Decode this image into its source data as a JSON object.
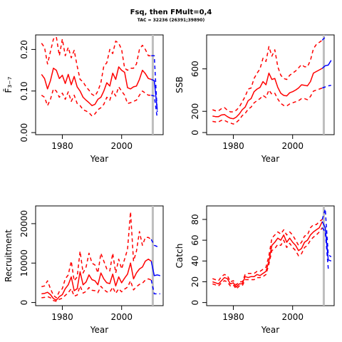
{
  "title": "Fsq, then FMult=0,4",
  "subtitle": "TAC = 32236 (26391;39890)",
  "colors": {
    "historical": "#ff0000",
    "projection": "#0000ff",
    "marker": "#bebebe",
    "axis": "#000000"
  },
  "chart_data": [
    {
      "type": "line",
      "id": "F",
      "xlabel": "Year",
      "ylabel": "F̄₃₋₇",
      "xlim": [
        1971,
        2014
      ],
      "ylim": [
        -0.005,
        0.235
      ],
      "xticks": [
        1980,
        2000
      ],
      "yticks": [
        0.0,
        0.1,
        0.2
      ],
      "ytick_labels": [
        "0.00",
        "0.10",
        "0.20"
      ],
      "marker_year": 2010.5,
      "historical": {
        "x": [
          1973,
          1974,
          1975,
          1976,
          1977,
          1978,
          1979,
          1980,
          1981,
          1982,
          1983,
          1984,
          1985,
          1986,
          1987,
          1988,
          1989,
          1990,
          1991,
          1992,
          1993,
          1994,
          1995,
          1996,
          1997,
          1998,
          1999,
          2000,
          2001,
          2002,
          2003,
          2004,
          2005,
          2006,
          2007,
          2008,
          2009,
          2010
        ],
        "mid": [
          0.14,
          0.13,
          0.105,
          0.125,
          0.155,
          0.15,
          0.13,
          0.138,
          0.118,
          0.14,
          0.115,
          0.135,
          0.11,
          0.1,
          0.085,
          0.078,
          0.072,
          0.065,
          0.068,
          0.08,
          0.085,
          0.1,
          0.12,
          0.112,
          0.143,
          0.128,
          0.158,
          0.15,
          0.145,
          0.108,
          0.105,
          0.11,
          0.112,
          0.128,
          0.15,
          0.142,
          0.13,
          0.128
        ],
        "upper": [
          0.215,
          0.205,
          0.165,
          0.195,
          0.225,
          0.23,
          0.185,
          0.225,
          0.185,
          0.205,
          0.18,
          0.198,
          0.16,
          0.128,
          0.122,
          0.11,
          0.102,
          0.092,
          0.088,
          0.1,
          0.12,
          0.16,
          0.168,
          0.2,
          0.19,
          0.22,
          0.215,
          0.2,
          0.155,
          0.15,
          0.155,
          0.155,
          0.165,
          0.2,
          0.21,
          0.2,
          0.185,
          0.185
        ],
        "lower": [
          0.09,
          0.085,
          0.065,
          0.08,
          0.105,
          0.1,
          0.085,
          0.095,
          0.08,
          0.098,
          0.075,
          0.09,
          0.07,
          0.065,
          0.055,
          0.052,
          0.048,
          0.04,
          0.045,
          0.055,
          0.06,
          0.068,
          0.085,
          0.078,
          0.1,
          0.088,
          0.11,
          0.1,
          0.09,
          0.07,
          0.072,
          0.075,
          0.078,
          0.09,
          0.1,
          0.095,
          0.09,
          0.09
        ]
      },
      "projection": {
        "x": [
          2010,
          2011,
          2012
        ],
        "mid": [
          0.128,
          0.125,
          0.055
        ],
        "upper": [
          0.185,
          0.185,
          0.05
        ],
        "lower": [
          0.09,
          0.088,
          0.035
        ]
      }
    },
    {
      "type": "line",
      "id": "SSB",
      "xlabel": "Year",
      "ylabel": "SSB",
      "xlim": [
        1971,
        2014
      ],
      "ylim": [
        -20,
        920
      ],
      "xticks": [
        1980,
        2000
      ],
      "yticks": [
        0,
        200,
        600
      ],
      "ytick_labels": [
        "0",
        "200",
        "600"
      ],
      "marker_year": 2010.5,
      "historical": {
        "x": [
          1973,
          1974,
          1975,
          1976,
          1977,
          1978,
          1979,
          1980,
          1981,
          1982,
          1983,
          1984,
          1985,
          1986,
          1987,
          1988,
          1989,
          1990,
          1991,
          1992,
          1993,
          1994,
          1995,
          1996,
          1997,
          1998,
          1999,
          2000,
          2001,
          2002,
          2003,
          2004,
          2005,
          2006,
          2007,
          2008,
          2009,
          2010
        ],
        "mid": [
          155,
          150,
          150,
          165,
          170,
          150,
          135,
          130,
          145,
          175,
          215,
          240,
          300,
          320,
          385,
          410,
          425,
          480,
          450,
          560,
          500,
          510,
          425,
          370,
          350,
          345,
          375,
          385,
          400,
          420,
          450,
          445,
          440,
          480,
          560,
          575,
          590,
          605
        ],
        "upper": [
          215,
          205,
          205,
          225,
          235,
          210,
          195,
          195,
          210,
          240,
          290,
          340,
          410,
          420,
          510,
          560,
          600,
          700,
          670,
          810,
          720,
          780,
          620,
          540,
          510,
          500,
          540,
          560,
          580,
          610,
          640,
          620,
          620,
          680,
          790,
          830,
          850,
          870
        ],
        "lower": [
          105,
          100,
          100,
          115,
          115,
          100,
          90,
          80,
          95,
          120,
          160,
          180,
          220,
          240,
          280,
          300,
          320,
          350,
          330,
          400,
          360,
          370,
          315,
          275,
          255,
          250,
          270,
          280,
          290,
          300,
          320,
          320,
          310,
          340,
          390,
          400,
          410,
          420
        ]
      },
      "projection": {
        "x": [
          2010,
          2011,
          2012,
          2013
        ],
        "mid": [
          605,
          630,
          635,
          680
        ],
        "upper": [
          870,
          900,
          960,
          980
        ],
        "lower": [
          420,
          430,
          440,
          445
        ]
      }
    },
    {
      "type": "line",
      "id": "Recruitment",
      "xlabel": "Year",
      "ylabel": "Recruitment",
      "xlim": [
        1971,
        2014
      ],
      "ylim": [
        -800,
        24500
      ],
      "xticks": [
        1980,
        2000
      ],
      "yticks": [
        0,
        10000,
        20000
      ],
      "ytick_labels": [
        "0",
        "10000",
        "20000"
      ],
      "marker_year": 2010.5,
      "historical": {
        "x": [
          1973,
          1974,
          1975,
          1976,
          1977,
          1978,
          1979,
          1980,
          1981,
          1982,
          1983,
          1984,
          1985,
          1986,
          1987,
          1988,
          1989,
          1990,
          1991,
          1992,
          1993,
          1994,
          1995,
          1996,
          1997,
          1998,
          1999,
          2000,
          2001,
          2002,
          2003,
          2004,
          2005,
          2006,
          2007,
          2008,
          2009,
          2010
        ],
        "mid": [
          2200,
          2300,
          2600,
          2000,
          1000,
          600,
          1500,
          2000,
          3500,
          4500,
          6500,
          3000,
          3500,
          7800,
          4500,
          5200,
          7000,
          5800,
          5500,
          4500,
          7500,
          6000,
          5000,
          4800,
          7200,
          4200,
          6500,
          5000,
          6200,
          7200,
          10000,
          6000,
          7500,
          8500,
          9000,
          10500,
          11000,
          10500
        ],
        "upper": [
          4000,
          4200,
          5500,
          3500,
          1800,
          1200,
          2800,
          3500,
          6000,
          7000,
          10500,
          5500,
          6500,
          13000,
          7500,
          9000,
          12500,
          10000,
          9500,
          7500,
          12500,
          10500,
          8500,
          8000,
          12500,
          7500,
          11000,
          8500,
          11000,
          13500,
          23000,
          10500,
          13000,
          18000,
          14500,
          16500,
          16500,
          16000
        ],
        "lower": [
          1200,
          1300,
          1500,
          1200,
          500,
          300,
          800,
          1100,
          1800,
          2500,
          3500,
          1600,
          1900,
          4200,
          2400,
          2800,
          3800,
          3100,
          3000,
          2500,
          4100,
          3300,
          2700,
          2600,
          3900,
          2300,
          3500,
          2700,
          3400,
          3900,
          5500,
          3200,
          4000,
          4600,
          4900,
          5700,
          6000,
          5700
        ]
      },
      "projection": {
        "x": [
          2010,
          2011,
          2012,
          2013
        ],
        "mid": [
          10500,
          6800,
          7000,
          6800
        ],
        "upper": [
          16000,
          14500,
          14200,
          14200
        ],
        "lower": [
          5700,
          2200,
          2200,
          2200
        ]
      }
    },
    {
      "type": "line",
      "id": "Catch",
      "xlabel": "Year",
      "ylabel": "Catch",
      "xlim": [
        1971,
        2014
      ],
      "ylim": [
        -3,
        93
      ],
      "xticks": [
        1980,
        2000
      ],
      "yticks": [
        0,
        20,
        40,
        60,
        80
      ],
      "ytick_labels": [
        "0",
        "20",
        "40",
        "60",
        "80"
      ],
      "marker_year": 2010.5,
      "historical": {
        "x": [
          1973,
          1974,
          1975,
          1976,
          1977,
          1978,
          1979,
          1980,
          1981,
          1982,
          1983,
          1984,
          1985,
          1986,
          1987,
          1988,
          1989,
          1990,
          1991,
          1992,
          1993,
          1994,
          1995,
          1996,
          1997,
          1998,
          1999,
          2000,
          2001,
          2002,
          2003,
          2004,
          2005,
          2006,
          2007,
          2008,
          2009,
          2010
        ],
        "mid": [
          20,
          19,
          18,
          21,
          24,
          23,
          18,
          19,
          15,
          18,
          18,
          25,
          24,
          25,
          25,
          27,
          26,
          28,
          30,
          40,
          55,
          58,
          62,
          60,
          65,
          58,
          62,
          58,
          55,
          50,
          52,
          58,
          60,
          65,
          68,
          70,
          72,
          78
        ],
        "upper": [
          23,
          22,
          21,
          25,
          27,
          26,
          20,
          21,
          17,
          20,
          20,
          27,
          28,
          28,
          28,
          30,
          30,
          32,
          34,
          45,
          62,
          65,
          68,
          66,
          70,
          65,
          68,
          65,
          60,
          55,
          58,
          64,
          65,
          72,
          75,
          75,
          78,
          80
        ],
        "lower": [
          18,
          17,
          16,
          19,
          21,
          20,
          16,
          17,
          13,
          16,
          16,
          22,
          22,
          22,
          22,
          24,
          24,
          25,
          27,
          37,
          50,
          52,
          56,
          55,
          60,
          53,
          57,
          53,
          50,
          45,
          47,
          53,
          55,
          60,
          63,
          65,
          68,
          72
        ]
      },
      "projection": {
        "x": [
          2010,
          2011,
          2012,
          2013
        ],
        "mid": [
          78,
          72,
          41,
          40
        ],
        "upper": [
          80,
          90,
          46,
          44
        ],
        "lower": [
          72,
          68,
          33,
          34
        ]
      }
    }
  ]
}
